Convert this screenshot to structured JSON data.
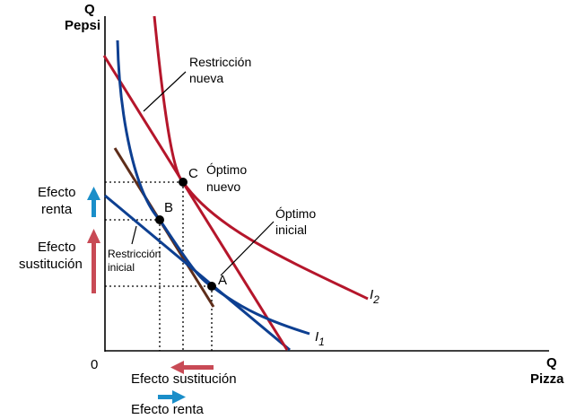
{
  "axes": {
    "y_label_line1": "Q",
    "y_label_line2": "Pepsi",
    "x_label_line1": "Q",
    "x_label_line2": "Pizza",
    "origin": "0"
  },
  "curves": {
    "i1_label": "I",
    "i1_sub": "1",
    "i2_label": "I",
    "i2_sub": "2"
  },
  "labels": {
    "new_constraint_line1": "Restricción",
    "new_constraint_line2": "nueva",
    "initial_constraint_line1": "Restricción",
    "initial_constraint_line2": "inicial",
    "new_optimum_line1": "Óptimo",
    "new_optimum_line2": "nuevo",
    "initial_optimum_line1": "Óptimo",
    "initial_optimum_line2": "inicial",
    "point_a": "A",
    "point_b": "B",
    "point_c": "C"
  },
  "effects": {
    "income_vertical_line1": "Efecto",
    "income_vertical_line2": "renta",
    "substitution_vertical_line1": "Efecto",
    "substitution_vertical_line2": "sustitución",
    "substitution_horizontal": "Efecto sustitución",
    "income_horizontal": "Efecto renta"
  },
  "colors": {
    "red": "#b5162b",
    "blue": "#0d3f91",
    "brown": "#5e2d1a",
    "red_arrow": "#c84a55",
    "cyan_arrow": "#1a8ec9",
    "axis": "#000000"
  }
}
